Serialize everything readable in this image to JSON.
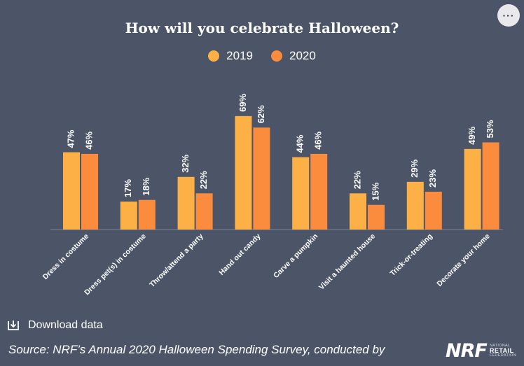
{
  "menu": {
    "label": "···",
    "icon": "more-icon"
  },
  "colors": {
    "background": "#4b5567",
    "series_2019": "#fdb045",
    "series_2020": "#fb8c3d",
    "baseline": "#7b8494"
  },
  "chart_data": {
    "type": "bar",
    "title": "How will you celebrate Halloween?",
    "xlabel": "",
    "ylabel": "",
    "ylim": [
      0,
      80
    ],
    "grid": false,
    "legend_placement": "top-center",
    "value_suffix": "%",
    "categories": [
      "Dress in costume",
      "Dress pet(s) in costume",
      "Throw/attend a party",
      "Hand out candy",
      "Carve a pumpkin",
      "Visit a haunted house",
      "Trick-or-treating",
      "Decorate your home"
    ],
    "series": [
      {
        "name": "2019",
        "values": [
          47,
          17,
          32,
          69,
          44,
          22,
          29,
          49
        ]
      },
      {
        "name": "2020",
        "values": [
          46,
          18,
          22,
          62,
          46,
          15,
          23,
          53
        ]
      }
    ]
  },
  "footer": {
    "download_label": "Download data",
    "download_icon": "download-icon",
    "source_text": "Source: NRF’s Annual 2020 Halloween Spending Survey, conducted by",
    "logo": {
      "mark": "NRF",
      "line1": "NATIONAL",
      "line2": "RETAIL",
      "line3": "FEDERATION"
    }
  }
}
